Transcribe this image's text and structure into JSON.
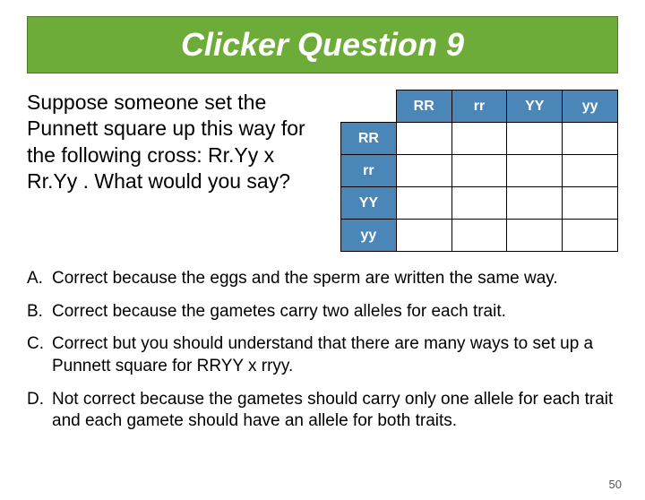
{
  "title": "Clicker Question 9",
  "title_bg": "#6eac3a",
  "title_border": "#4a7a28",
  "title_color": "#ffffff",
  "question": "Suppose someone set the Punnett  square up this way for the following cross: Rr.Yy  x Rr.Yy . What would you say?",
  "punnett": {
    "col_headers": [
      "RR",
      "rr",
      "YY",
      "yy"
    ],
    "row_headers": [
      "RR",
      "rr",
      "YY",
      "yy"
    ],
    "header_bg": "#4a86b8",
    "header_color": "#ffffff",
    "cell_bg": "#ffffff",
    "border_color": "#000000",
    "cells": [
      [
        "",
        "",
        "",
        ""
      ],
      [
        "",
        "",
        "",
        ""
      ],
      [
        "",
        "",
        "",
        ""
      ],
      [
        "",
        "",
        "",
        ""
      ]
    ]
  },
  "answers": [
    {
      "letter": "A.",
      "text": "Correct because the eggs and the sperm are written the same way."
    },
    {
      "letter": "B.",
      "text": "Correct because the gametes carry two alleles for each trait."
    },
    {
      "letter": "C.",
      "text": "Correct but you should understand that there are many ways to set up a Punnett square for RRYY x rryy."
    },
    {
      "letter": "D.",
      "text": "Not correct because the gametes should carry only one allele for each trait and each gamete should have an allele for both traits."
    }
  ],
  "page_number": "50"
}
